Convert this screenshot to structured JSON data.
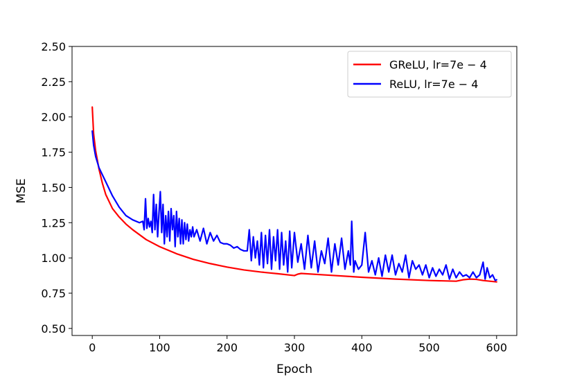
{
  "chart_data": {
    "type": "line",
    "title": "",
    "xlabel": "Epoch",
    "ylabel": "MSE",
    "xlim": [
      -30,
      630
    ],
    "ylim": [
      0.45,
      2.5
    ],
    "xticks": [
      0,
      100,
      200,
      300,
      400,
      500,
      600
    ],
    "yticks": [
      0.5,
      0.75,
      1.0,
      1.25,
      1.5,
      1.75,
      2.0,
      2.25,
      2.5
    ],
    "xtick_labels": [
      "0",
      "100",
      "200",
      "300",
      "400",
      "500",
      "600"
    ],
    "ytick_labels": [
      "0.50",
      "0.75",
      "1.00",
      "1.25",
      "1.50",
      "1.75",
      "2.00",
      "2.25",
      "2.50"
    ],
    "grid": false,
    "legend_position": "top-right",
    "series": [
      {
        "name": "GReLU, lr=7e − 4",
        "color": "#ff0000",
        "x": [
          0,
          2,
          5,
          10,
          15,
          20,
          30,
          40,
          50,
          60,
          80,
          100,
          125,
          150,
          175,
          200,
          225,
          250,
          275,
          300,
          305,
          310,
          350,
          400,
          450,
          500,
          540,
          550,
          560,
          570,
          580,
          590,
          600
        ],
        "y": [
          2.07,
          1.88,
          1.76,
          1.63,
          1.53,
          1.45,
          1.35,
          1.29,
          1.24,
          1.2,
          1.13,
          1.08,
          1.03,
          0.99,
          0.96,
          0.935,
          0.915,
          0.9,
          0.888,
          0.875,
          0.885,
          0.89,
          0.878,
          0.863,
          0.85,
          0.84,
          0.835,
          0.845,
          0.85,
          0.848,
          0.84,
          0.835,
          0.83
        ]
      },
      {
        "name": "ReLU, lr=7e − 4",
        "color": "#0000ff",
        "x": [
          0,
          2,
          5,
          10,
          20,
          30,
          40,
          50,
          60,
          70,
          75,
          77,
          79,
          81,
          83,
          85,
          87,
          89,
          91,
          93,
          95,
          97,
          99,
          101,
          103,
          105,
          107,
          109,
          111,
          113,
          115,
          117,
          119,
          121,
          123,
          125,
          127,
          129,
          131,
          133,
          135,
          137,
          139,
          141,
          143,
          145,
          147,
          149,
          151,
          155,
          160,
          165,
          170,
          175,
          180,
          185,
          190,
          195,
          200,
          205,
          210,
          215,
          220,
          225,
          230,
          233,
          236,
          239,
          242,
          245,
          248,
          251,
          254,
          257,
          260,
          263,
          266,
          269,
          272,
          275,
          278,
          281,
          284,
          287,
          290,
          293,
          296,
          300,
          305,
          310,
          315,
          320,
          325,
          330,
          335,
          340,
          345,
          350,
          355,
          360,
          365,
          370,
          375,
          380,
          383,
          385,
          388,
          390,
          395,
          400,
          405,
          410,
          415,
          420,
          425,
          430,
          435,
          440,
          445,
          450,
          455,
          460,
          465,
          470,
          475,
          480,
          485,
          490,
          495,
          500,
          505,
          510,
          515,
          520,
          525,
          530,
          535,
          540,
          545,
          550,
          555,
          560,
          565,
          570,
          575,
          580,
          583,
          586,
          590,
          594,
          598,
          600
        ],
        "y": [
          1.9,
          1.8,
          1.72,
          1.64,
          1.54,
          1.44,
          1.36,
          1.3,
          1.27,
          1.25,
          1.26,
          1.2,
          1.42,
          1.21,
          1.28,
          1.22,
          1.26,
          1.18,
          1.45,
          1.2,
          1.38,
          1.15,
          1.32,
          1.47,
          1.18,
          1.38,
          1.1,
          1.3,
          1.15,
          1.33,
          1.12,
          1.35,
          1.2,
          1.3,
          1.08,
          1.33,
          1.15,
          1.28,
          1.1,
          1.27,
          1.1,
          1.25,
          1.13,
          1.24,
          1.12,
          1.2,
          1.15,
          1.22,
          1.15,
          1.2,
          1.12,
          1.21,
          1.1,
          1.18,
          1.12,
          1.16,
          1.11,
          1.1,
          1.1,
          1.09,
          1.07,
          1.08,
          1.06,
          1.05,
          1.05,
          1.2,
          0.98,
          1.15,
          1.0,
          1.12,
          0.95,
          1.18,
          0.93,
          1.16,
          0.96,
          1.2,
          0.92,
          1.15,
          0.98,
          1.2,
          0.92,
          1.18,
          0.95,
          1.12,
          0.9,
          1.19,
          0.93,
          1.18,
          0.97,
          1.1,
          0.92,
          1.16,
          0.93,
          1.12,
          0.9,
          1.05,
          0.96,
          1.14,
          0.9,
          1.1,
          0.95,
          1.14,
          0.92,
          1.05,
          0.95,
          1.26,
          0.9,
          0.98,
          0.92,
          0.95,
          1.18,
          0.9,
          0.98,
          0.88,
          1.0,
          0.87,
          1.02,
          0.9,
          1.02,
          0.88,
          0.96,
          0.9,
          1.02,
          0.86,
          0.98,
          0.92,
          0.95,
          0.88,
          0.95,
          0.86,
          0.93,
          0.87,
          0.92,
          0.88,
          0.95,
          0.85,
          0.92,
          0.86,
          0.9,
          0.87,
          0.88,
          0.86,
          0.9,
          0.86,
          0.88,
          0.97,
          0.85,
          0.93,
          0.86,
          0.88,
          0.84,
          0.845
        ]
      }
    ]
  }
}
